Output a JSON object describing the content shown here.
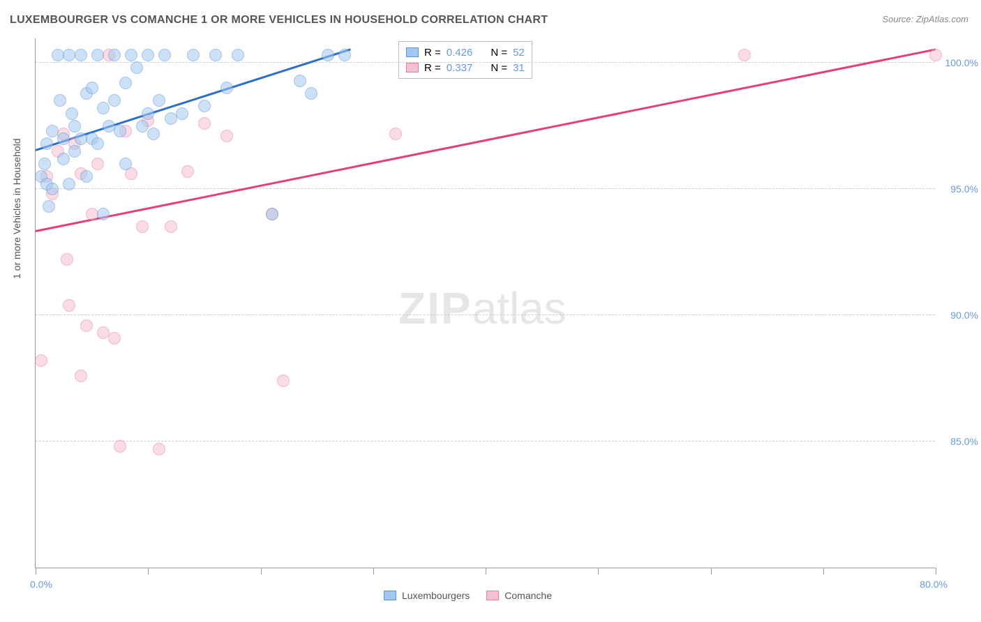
{
  "title": "LUXEMBOURGER VS COMANCHE 1 OR MORE VEHICLES IN HOUSEHOLD CORRELATION CHART",
  "source": "Source: ZipAtlas.com",
  "ylabel": "1 or more Vehicles in Household",
  "colors": {
    "series1_fill": "#a3c7f0",
    "series1_stroke": "#5a94d6",
    "series2_fill": "#f5c0cf",
    "series2_stroke": "#e97ca1",
    "trend1": "#2b6fc9",
    "trend2": "#e43f77",
    "tick_label": "#6699dd",
    "grid": "#cccccc",
    "text": "#555555",
    "background": "#ffffff"
  },
  "chart": {
    "type": "scatter",
    "xlim": [
      0,
      80
    ],
    "ylim": [
      80,
      101
    ],
    "x_ticks": [
      0,
      10,
      20,
      30,
      40,
      50,
      60,
      70,
      80
    ],
    "y_gridlines": [
      85,
      90,
      95,
      100
    ],
    "y_tick_labels": [
      "85.0%",
      "90.0%",
      "95.0%",
      "100.0%"
    ],
    "x_tick_labels": {
      "first": "0.0%",
      "last": "80.0%"
    },
    "marker_radius": 9,
    "marker_opacity": 0.55,
    "trend_width": 2.5
  },
  "series": [
    {
      "name": "Luxembourgers",
      "label": "Luxembourgers",
      "r": "0.426",
      "n": "52",
      "trend": {
        "x1": 0,
        "y1": 96.5,
        "x2": 28,
        "y2": 100.5
      },
      "points": [
        [
          0.5,
          95.5
        ],
        [
          0.8,
          96.0
        ],
        [
          1.0,
          96.8
        ],
        [
          1.0,
          95.2
        ],
        [
          1.2,
          94.3
        ],
        [
          1.5,
          97.3
        ],
        [
          1.5,
          95.0
        ],
        [
          2.0,
          100.3
        ],
        [
          2.2,
          98.5
        ],
        [
          2.5,
          96.2
        ],
        [
          2.5,
          97.0
        ],
        [
          3.0,
          100.3
        ],
        [
          3.0,
          95.2
        ],
        [
          3.2,
          98.0
        ],
        [
          3.5,
          96.5
        ],
        [
          3.5,
          97.5
        ],
        [
          4.0,
          97.0
        ],
        [
          4.0,
          100.3
        ],
        [
          4.5,
          98.8
        ],
        [
          4.5,
          95.5
        ],
        [
          5.0,
          99.0
        ],
        [
          5.0,
          97.0
        ],
        [
          5.5,
          100.3
        ],
        [
          5.5,
          96.8
        ],
        [
          6.0,
          98.2
        ],
        [
          6.0,
          94.0
        ],
        [
          6.5,
          97.5
        ],
        [
          7.0,
          100.3
        ],
        [
          7.0,
          98.5
        ],
        [
          7.5,
          97.3
        ],
        [
          8.0,
          99.2
        ],
        [
          8.0,
          96.0
        ],
        [
          8.5,
          100.3
        ],
        [
          9.0,
          99.8
        ],
        [
          9.5,
          97.5
        ],
        [
          10.0,
          98.0
        ],
        [
          10.0,
          100.3
        ],
        [
          10.5,
          97.2
        ],
        [
          11.0,
          98.5
        ],
        [
          11.5,
          100.3
        ],
        [
          12.0,
          97.8
        ],
        [
          13.0,
          98.0
        ],
        [
          14.0,
          100.3
        ],
        [
          15.0,
          98.3
        ],
        [
          16.0,
          100.3
        ],
        [
          17.0,
          99.0
        ],
        [
          18.0,
          100.3
        ],
        [
          21.0,
          94.0
        ],
        [
          23.5,
          99.3
        ],
        [
          24.5,
          98.8
        ],
        [
          26.0,
          100.3
        ],
        [
          27.5,
          100.3
        ]
      ]
    },
    {
      "name": "Comanche",
      "label": "Comanche",
      "r": "0.337",
      "n": "31",
      "trend": {
        "x1": 0,
        "y1": 93.3,
        "x2": 80,
        "y2": 100.5
      },
      "points": [
        [
          0.5,
          88.2
        ],
        [
          1.0,
          95.5
        ],
        [
          1.5,
          94.8
        ],
        [
          2.0,
          96.5
        ],
        [
          2.5,
          97.2
        ],
        [
          2.8,
          92.2
        ],
        [
          3.0,
          90.4
        ],
        [
          3.5,
          96.8
        ],
        [
          4.0,
          95.6
        ],
        [
          4.0,
          87.6
        ],
        [
          4.5,
          89.6
        ],
        [
          5.0,
          94.0
        ],
        [
          5.5,
          96.0
        ],
        [
          6.0,
          89.3
        ],
        [
          6.5,
          100.3
        ],
        [
          7.0,
          89.1
        ],
        [
          7.5,
          84.8
        ],
        [
          8.0,
          97.3
        ],
        [
          8.5,
          95.6
        ],
        [
          9.5,
          93.5
        ],
        [
          10.0,
          97.7
        ],
        [
          11.0,
          84.7
        ],
        [
          12.0,
          93.5
        ],
        [
          13.5,
          95.7
        ],
        [
          15.0,
          97.6
        ],
        [
          17.0,
          97.1
        ],
        [
          21.0,
          94.0
        ],
        [
          22.0,
          87.4
        ],
        [
          32.0,
          97.2
        ],
        [
          63.0,
          100.3
        ],
        [
          80.0,
          100.3
        ]
      ]
    }
  ],
  "legend_top": {
    "r_prefix": "R =",
    "n_prefix": "N ="
  },
  "watermark": {
    "zip": "ZIP",
    "atlas": "atlas"
  }
}
